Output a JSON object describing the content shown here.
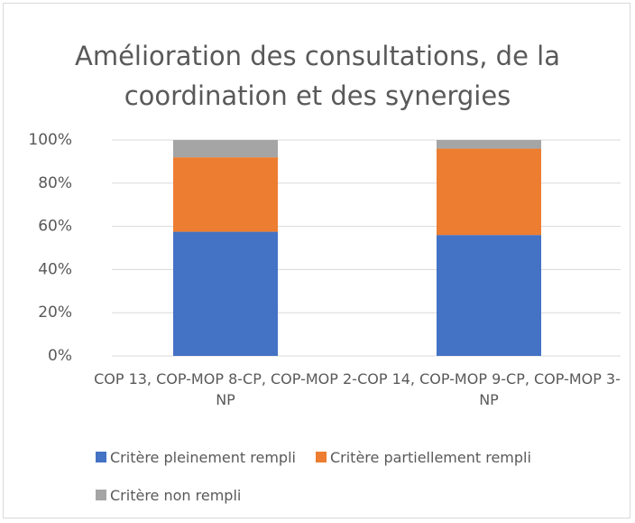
{
  "chart_data": {
    "type": "bar",
    "stacked": true,
    "title": "Amélioration des consultations, de la coordination et des synergies",
    "categories": [
      "COP 13, COP-MOP 8-CP, COP-MOP 2-NP",
      "COP 14, COP-MOP 9-CP, COP-MOP 3-NP"
    ],
    "series": [
      {
        "name": "Critère pleinement rempli",
        "color": "#4472c4",
        "values": [
          57.5,
          56
        ]
      },
      {
        "name": "Critère partiellement rempli",
        "color": "#ed7d31",
        "values": [
          34.5,
          40
        ]
      },
      {
        "name": "Critère non rempli",
        "color": "#a5a5a5",
        "values": [
          8,
          4
        ]
      }
    ],
    "ylim": [
      0,
      100
    ],
    "yticks": [
      {
        "value": 0,
        "label": "0%"
      },
      {
        "value": 20,
        "label": "20%"
      },
      {
        "value": 40,
        "label": "40%"
      },
      {
        "value": 60,
        "label": "60%"
      },
      {
        "value": 80,
        "label": "80%"
      },
      {
        "value": 100,
        "label": "100%"
      }
    ],
    "grid": true,
    "legend": "bottom"
  }
}
